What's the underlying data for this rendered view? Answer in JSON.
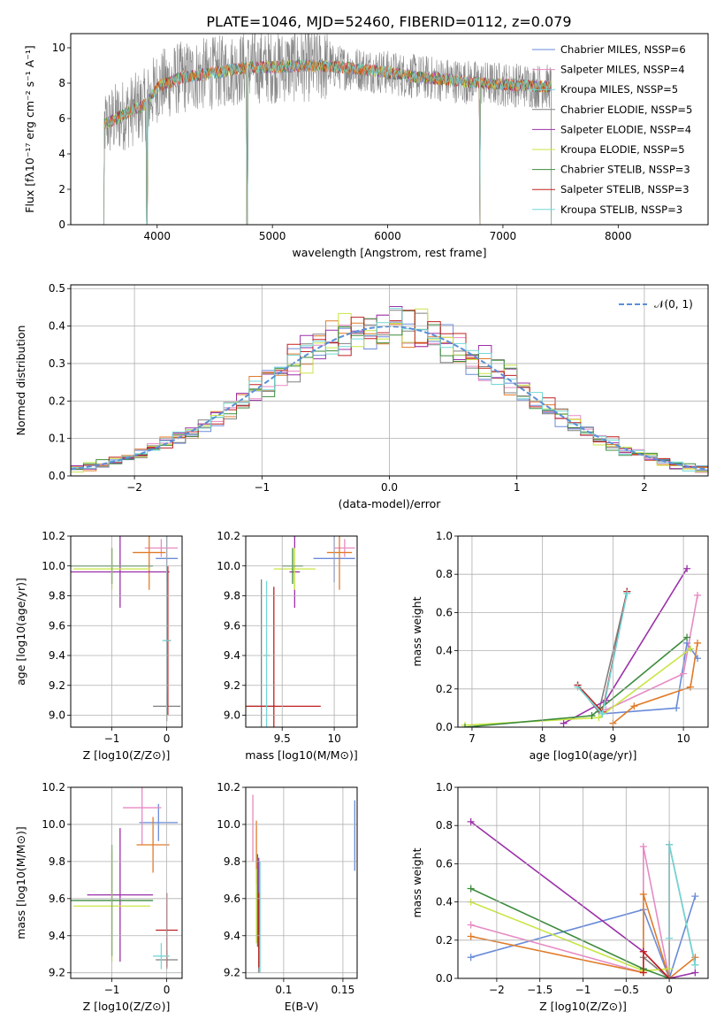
{
  "figure_title": "PLATE=1046, MJD=52460, FIBERID=0112, z=0.079",
  "series_colors": [
    "#6a8bd9",
    "#e78ac3",
    "#e07b28",
    "#808080",
    "#9b30a8",
    "#c8e645",
    "#3d8b3d",
    "#c02020",
    "#72d7d7"
  ],
  "chart_data": [
    {
      "id": "spectrum",
      "type": "line",
      "title": "PLATE=1046, MJD=52460, FIBERID=0112, z=0.079",
      "xlabel": "wavelength [Angstrom, rest frame]",
      "ylabel": "Flux [fλ10⁻¹⁷ erg cm⁻² s⁻¹ A⁻¹]",
      "xlim": [
        3250,
        8780
      ],
      "ylim": [
        0,
        10.8
      ],
      "xticks": [
        4000,
        5000,
        6000,
        7000,
        8000
      ],
      "yticks": [
        0,
        2,
        4,
        6,
        8,
        10
      ],
      "legend_position": "upper-right",
      "legend": [
        {
          "label": "Chabrier MILES, NSSP=6",
          "color": "#6a8bd9"
        },
        {
          "label": "Salpeter MILES, NSSP=4",
          "color": "#e78ac3"
        },
        {
          "label": "Kroupa MILES, NSSP=5",
          "color": "#72d7d7"
        },
        {
          "label": "Chabrier ELODIE, NSSP=5",
          "color": "#808080"
        },
        {
          "label": "Salpeter ELODIE, NSSP=4",
          "color": "#9b30a8"
        },
        {
          "label": "Kroupa ELODIE, NSSP=5",
          "color": "#c8e645"
        },
        {
          "label": "Chabrier STELIB, NSSP=3",
          "color": "#3d8b3d"
        },
        {
          "label": "Salpeter STELIB, NSSP=3",
          "color": "#c02020"
        },
        {
          "label": "Kroupa STELIB, NSSP=3",
          "color": "#72d7d7"
        }
      ],
      "data_range": [
        3530,
        7420
      ],
      "continuum": [
        [
          3530,
          5.6
        ],
        [
          3700,
          6.2
        ],
        [
          3900,
          6.8
        ],
        [
          4000,
          7.8
        ],
        [
          4200,
          8.3
        ],
        [
          4500,
          8.6
        ],
        [
          4800,
          8.9
        ],
        [
          5000,
          8.9
        ],
        [
          5300,
          9.0
        ],
        [
          5600,
          8.9
        ],
        [
          5900,
          8.7
        ],
        [
          6200,
          8.4
        ],
        [
          6500,
          8.2
        ],
        [
          6800,
          8.0
        ],
        [
          7100,
          7.9
        ],
        [
          7420,
          7.8
        ]
      ],
      "dips": [
        {
          "x": 3910,
          "y": 0.0
        },
        {
          "x": 4780,
          "y": 0.0
        },
        {
          "x": 6800,
          "y": 0.0
        }
      ]
    },
    {
      "id": "residuals",
      "type": "histogram",
      "xlabel": "(data-model)/error",
      "ylabel": "Normed distribution",
      "xlim": [
        -2.5,
        2.5
      ],
      "ylim": [
        0,
        0.51
      ],
      "xticks": [
        -2,
        -1,
        0,
        1,
        2
      ],
      "yticks": [
        0.0,
        0.1,
        0.2,
        0.3,
        0.4,
        0.5
      ],
      "legend_position": "upper-right",
      "reference_label": "𝒩(0, 1)",
      "reference_color": "#5a8fd8",
      "bin_width": 0.1
    },
    {
      "id": "age-vs-Z",
      "type": "errorbar",
      "xlabel": "Z [log10(Z/Z⊙)]",
      "ylabel": "age  [log10(age/yr)]",
      "xlim": [
        -1.75,
        0.28
      ],
      "ylim": [
        8.92,
        10.2
      ],
      "xticks": [
        -1,
        0
      ],
      "yticks": [
        9.0,
        9.2,
        9.4,
        9.6,
        9.8,
        10.0,
        10.2
      ],
      "points": [
        {
          "color": "#6a8bd9",
          "x": 0.0,
          "xerr": 0.2,
          "y": 10.05,
          "yerr": 0.16
        },
        {
          "color": "#e78ac3",
          "x": -0.1,
          "xerr": 0.3,
          "y": 10.12,
          "yerr": 0.06
        },
        {
          "color": "#e07b28",
          "x": -0.32,
          "xerr": 0.3,
          "y": 10.09,
          "yerr": 0.25
        },
        {
          "color": "#808080",
          "x": 0.0,
          "xerr": 0.25,
          "y": 9.06,
          "yerr": 0.1
        },
        {
          "color": "#9b30a8",
          "x": -0.85,
          "xerr": 0.9,
          "y": 9.96,
          "yerr": 0.24
        },
        {
          "color": "#c8e645",
          "x": -1.0,
          "xerr": 0.7,
          "y": 9.98,
          "yerr": 0.14
        },
        {
          "color": "#3d8b3d",
          "x": -1.0,
          "xerr": 0.75,
          "y": 10.0,
          "yerr": 0.12
        },
        {
          "color": "#c02020",
          "x": 0.02,
          "xerr": 0.05,
          "y": 9.5,
          "yerr": 0.5
        },
        {
          "color": "#72d7d7",
          "x": 0.0,
          "xerr": 0.08,
          "y": 9.5,
          "yerr": 0.5
        }
      ]
    },
    {
      "id": "age-vs-mass",
      "type": "errorbar",
      "xlabel": "mass [log10(M/M⊙)]",
      "ylabel": "",
      "xlim": [
        9.15,
        10.22
      ],
      "ylim": [
        8.92,
        10.2
      ],
      "xticks": [
        9.5,
        10.0
      ],
      "yticks": [
        9.0,
        9.2,
        9.4,
        9.6,
        9.8,
        10.0,
        10.2
      ],
      "points": [
        {
          "color": "#6a8bd9",
          "x": 10.0,
          "xerr": 0.2,
          "y": 10.05,
          "yerr": 0.16
        },
        {
          "color": "#e78ac3",
          "x": 10.1,
          "xerr": 0.1,
          "y": 10.12,
          "yerr": 0.06
        },
        {
          "color": "#e07b28",
          "x": 10.05,
          "xerr": 0.12,
          "y": 10.09,
          "yerr": 0.25
        },
        {
          "color": "#808080",
          "x": 9.3,
          "xerr": 0.13,
          "y": 9.06,
          "yerr": 0.85
        },
        {
          "color": "#9b30a8",
          "x": 9.62,
          "xerr": 0.05,
          "y": 9.96,
          "yerr": 0.24
        },
        {
          "color": "#c8e645",
          "x": 9.62,
          "xerr": 0.2,
          "y": 9.98,
          "yerr": 0.14
        },
        {
          "color": "#3d8b3d",
          "x": 9.6,
          "xerr": 0.1,
          "y": 10.0,
          "yerr": 0.12
        },
        {
          "color": "#c02020",
          "x": 9.42,
          "xerr": 0.45,
          "y": 9.06,
          "yerr": 0.8
        },
        {
          "color": "#72d7d7",
          "x": 9.35,
          "xerr": 0.03,
          "y": 9.4,
          "yerr": 0.5
        }
      ]
    },
    {
      "id": "weight-vs-age",
      "type": "line",
      "xlabel": "age  [log10(age/yr)]",
      "ylabel": "mass weight",
      "xlim": [
        6.8,
        10.35
      ],
      "ylim": [
        0,
        1
      ],
      "xticks": [
        7,
        8,
        9,
        10
      ],
      "yticks": [
        0.0,
        0.2,
        0.4,
        0.6,
        0.8,
        1.0
      ],
      "series": [
        {
          "color": "#6a8bd9",
          "x": [
            8.85,
            9.9,
            10.05,
            10.2
          ],
          "y": [
            0.07,
            0.1,
            0.44,
            0.36
          ]
        },
        {
          "color": "#e78ac3",
          "x": [
            8.9,
            10.0,
            10.2
          ],
          "y": [
            0.09,
            0.28,
            0.69
          ]
        },
        {
          "color": "#e07b28",
          "x": [
            9.0,
            9.3,
            10.1,
            10.2
          ],
          "y": [
            0.02,
            0.11,
            0.21,
            0.44
          ]
        },
        {
          "color": "#808080",
          "x": [
            8.5,
            8.8,
            9.2
          ],
          "y": [
            0.22,
            0.08,
            0.71
          ]
        },
        {
          "color": "#9b30a8",
          "x": [
            8.3,
            8.9,
            10.05
          ],
          "y": [
            0.02,
            0.14,
            0.83
          ]
        },
        {
          "color": "#c8e645",
          "x": [
            6.9,
            8.8,
            10.1
          ],
          "y": [
            0.01,
            0.05,
            0.41
          ]
        },
        {
          "color": "#3d8b3d",
          "x": [
            6.9,
            8.7,
            10.05
          ],
          "y": [
            0.0,
            0.06,
            0.47
          ]
        },
        {
          "color": "#c02020",
          "x": [
            8.5,
            8.85,
            9.2
          ],
          "y": [
            0.22,
            0.08,
            0.71
          ]
        },
        {
          "color": "#72d7d7",
          "x": [
            8.5,
            8.85,
            9.2
          ],
          "y": [
            0.21,
            0.07,
            0.7
          ]
        }
      ]
    },
    {
      "id": "mass-vs-Z",
      "type": "errorbar",
      "xlabel": "Z [log10(Z/Z⊙)]",
      "ylabel": "mass [log10(M/M⊙)]",
      "xlim": [
        -1.75,
        0.28
      ],
      "ylim": [
        9.17,
        10.2
      ],
      "xticks": [
        -1,
        0
      ],
      "yticks": [
        9.2,
        9.4,
        9.6,
        9.8,
        10.0,
        10.2
      ],
      "points": [
        {
          "color": "#6a8bd9",
          "x": -0.15,
          "xerr": 0.35,
          "y": 10.01,
          "yerr": 0.1
        },
        {
          "color": "#e78ac3",
          "x": -0.45,
          "xerr": 0.35,
          "y": 10.09,
          "yerr": 0.2
        },
        {
          "color": "#e07b28",
          "x": -0.25,
          "xerr": 0.3,
          "y": 9.89,
          "yerr": 0.15
        },
        {
          "color": "#808080",
          "x": 0.0,
          "xerr": 0.2,
          "y": 9.27,
          "yerr": 0.05
        },
        {
          "color": "#9b30a8",
          "x": -0.85,
          "xerr": 0.6,
          "y": 9.62,
          "yerr": 0.36
        },
        {
          "color": "#c8e645",
          "x": -1.0,
          "xerr": 0.7,
          "y": 9.56,
          "yerr": 0.3
        },
        {
          "color": "#3d8b3d",
          "x": -1.0,
          "xerr": 0.75,
          "y": 9.59,
          "yerr": 0.3
        },
        {
          "color": "#c02020",
          "x": 0.0,
          "xerr": 0.2,
          "y": 9.43,
          "yerr": 0.2
        },
        {
          "color": "#72d7d7",
          "x": -0.1,
          "xerr": 0.15,
          "y": 9.29,
          "yerr": 0.07
        }
      ]
    },
    {
      "id": "mass-vs-EBV",
      "type": "errorbar",
      "xlabel": "E(B-V)",
      "ylabel": "",
      "xlim": [
        0.068,
        0.162
      ],
      "ylim": [
        9.17,
        10.2
      ],
      "xticks": [
        0.1,
        0.15
      ],
      "yticks": [
        9.2,
        9.4,
        9.6,
        9.8,
        10.0,
        10.2
      ],
      "points": [
        {
          "color": "#6a8bd9",
          "x": 0.16,
          "xerr": 0.0,
          "y": 9.94,
          "yerr": 0.19
        },
        {
          "color": "#e78ac3",
          "x": 0.074,
          "xerr": 0.0,
          "y": 9.98,
          "yerr": 0.18
        },
        {
          "color": "#e07b28",
          "x": 0.077,
          "xerr": 0.0,
          "y": 9.85,
          "yerr": 0.17
        },
        {
          "color": "#808080",
          "x": 0.079,
          "xerr": 0.0,
          "y": 9.35,
          "yerr": 0.15
        },
        {
          "color": "#9b30a8",
          "x": 0.079,
          "xerr": 0.0,
          "y": 9.62,
          "yerr": 0.2
        },
        {
          "color": "#c8e645",
          "x": 0.077,
          "xerr": 0.0,
          "y": 9.56,
          "yerr": 0.2
        },
        {
          "color": "#3d8b3d",
          "x": 0.078,
          "xerr": 0.0,
          "y": 9.59,
          "yerr": 0.25
        },
        {
          "color": "#c02020",
          "x": 0.079,
          "xerr": 0.0,
          "y": 9.43,
          "yerr": 0.2
        },
        {
          "color": "#72d7d7",
          "x": 0.08,
          "xerr": 0.0,
          "y": 9.5,
          "yerr": 0.3
        }
      ]
    },
    {
      "id": "weight-vs-Z",
      "type": "line",
      "xlabel": "Z [log10(Z/Z⊙)]",
      "ylabel": "mass weight",
      "xlim": [
        -2.45,
        0.45
      ],
      "ylim": [
        0,
        1
      ],
      "xticks": [
        -2.0,
        -1.5,
        -1.0,
        -0.5,
        0.0
      ],
      "yticks": [
        0.0,
        0.2,
        0.4,
        0.6,
        0.8,
        1.0
      ],
      "series": [
        {
          "color": "#6a8bd9",
          "x": [
            -2.3,
            -0.3,
            0.0,
            0.3
          ],
          "y": [
            0.11,
            0.36,
            0.0,
            0.43
          ]
        },
        {
          "color": "#e78ac3",
          "x": [
            -2.3,
            -0.3,
            -0.3,
            0.0
          ],
          "y": [
            0.28,
            0.03,
            0.69,
            0.0
          ]
        },
        {
          "color": "#e07b28",
          "x": [
            -2.3,
            -0.3,
            -0.3,
            0.0,
            0.3
          ],
          "y": [
            0.22,
            0.03,
            0.44,
            0.0,
            0.11
          ]
        },
        {
          "color": "#808080",
          "x": [
            -0.3,
            0.0,
            0.0,
            0.3
          ],
          "y": [
            0.11,
            0.0,
            0.7,
            0.07
          ]
        },
        {
          "color": "#9b30a8",
          "x": [
            -2.3,
            -0.3,
            0.0,
            0.3
          ],
          "y": [
            0.82,
            0.14,
            0.0,
            0.03
          ]
        },
        {
          "color": "#c8e645",
          "x": [
            -2.3,
            -0.3,
            0.0
          ],
          "y": [
            0.4,
            0.04,
            0.05
          ]
        },
        {
          "color": "#3d8b3d",
          "x": [
            -2.3,
            -0.3,
            0.0
          ],
          "y": [
            0.47,
            0.05,
            0.0
          ]
        },
        {
          "color": "#c02020",
          "x": [
            -0.3,
            -0.3,
            0.0
          ],
          "y": [
            0.03,
            0.14,
            0.0
          ]
        },
        {
          "color": "#72d7d7",
          "x": [
            0.0,
            0.0,
            0.3
          ],
          "y": [
            0.21,
            0.7,
            0.07
          ]
        }
      ]
    }
  ]
}
